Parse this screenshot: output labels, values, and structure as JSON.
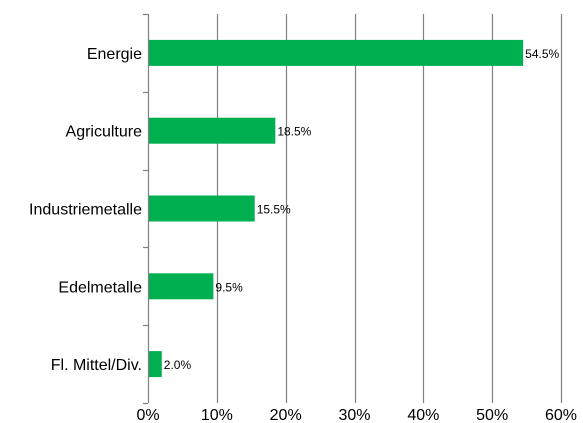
{
  "chart_data": {
    "type": "bar",
    "orientation": "horizontal",
    "categories": [
      "Energie",
      "Agriculture",
      "Industriemetalle",
      "Edelmetalle",
      "Fl. Mittel/Div."
    ],
    "values": [
      54.5,
      18.5,
      15.5,
      9.5,
      2.0
    ],
    "data_labels": [
      "54.5%",
      "18.5%",
      "15.5%",
      "9.5%",
      "2.0%"
    ],
    "xlim": [
      0,
      60
    ],
    "x_ticks": [
      0,
      10,
      20,
      30,
      40,
      50,
      60
    ],
    "x_tick_labels": [
      "0%",
      "10%",
      "20%",
      "30%",
      "40%",
      "50%",
      "60%"
    ],
    "title": "",
    "xlabel": "",
    "ylabel": "",
    "grid": "vertical",
    "legend": "none",
    "colors": {
      "bar": "#00b050",
      "grid": "#808080",
      "axis": "#808080"
    }
  }
}
